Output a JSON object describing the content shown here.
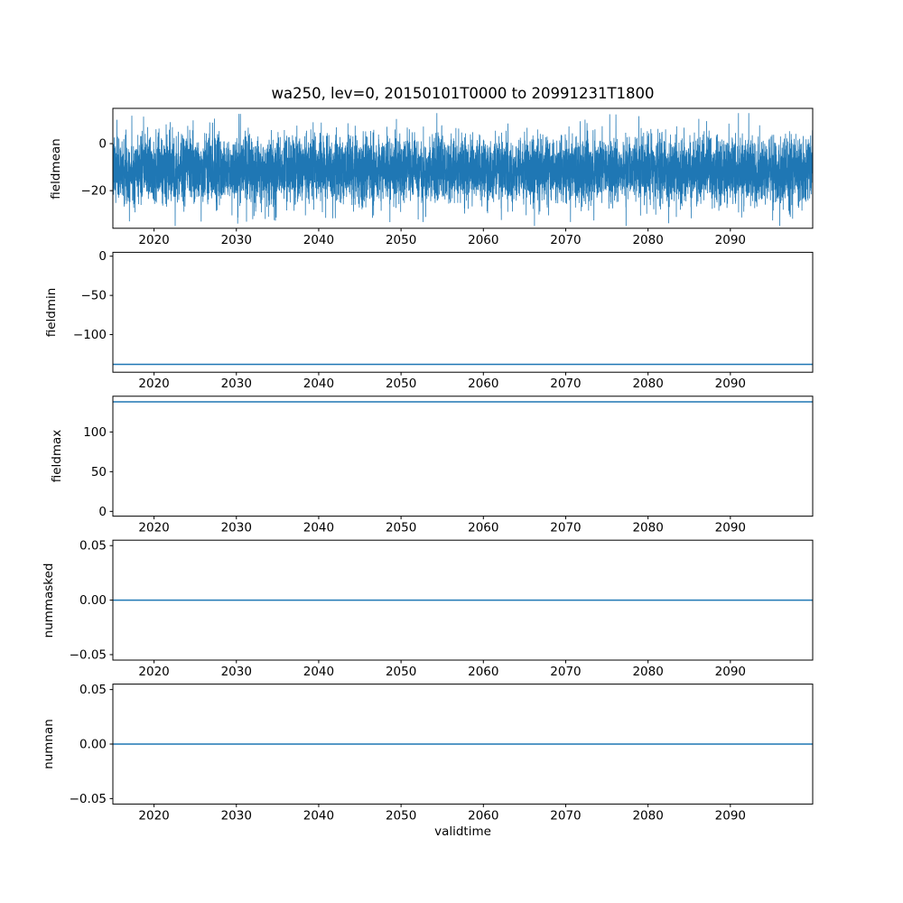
{
  "figure": {
    "title": "wa250, lev=0, 20150101T0000 to 20991231T1800",
    "xlabel": "validtime",
    "background_color": "#ffffff",
    "line_color": "#1f77b4",
    "axes_color": "#000000"
  },
  "chart_data": [
    {
      "type": "line",
      "title": "wa250, lev=0, 20150101T0000 to 20991231T1800",
      "ylabel": "fieldmean",
      "xlabel": "",
      "grid": false,
      "legend": "none",
      "x_range": [
        2015,
        2100
      ],
      "x_ticks": [
        2020,
        2030,
        2040,
        2050,
        2060,
        2070,
        2080,
        2090
      ],
      "y_tick_values": [
        0,
        -20
      ],
      "y_tick_labels": [
        "0",
        "−20"
      ],
      "ylim": [
        -36,
        15
      ],
      "series": [
        {
          "name": "fieldmean",
          "kind": "noise",
          "description": "dense high-frequency time series spanning 2015-2099, solid noise band roughly -25 to +3 with spikes down to -35 and up to +13",
          "mean": -11,
          "std": 7,
          "min": -35,
          "max": 13,
          "n_points": 8000,
          "seed": 7
        }
      ]
    },
    {
      "type": "line",
      "ylabel": "fieldmin",
      "xlabel": "",
      "grid": false,
      "legend": "none",
      "x_range": [
        2015,
        2100
      ],
      "x_ticks": [
        2020,
        2030,
        2040,
        2050,
        2060,
        2070,
        2080,
        2090
      ],
      "y_tick_values": [
        0,
        -50,
        -100
      ],
      "y_tick_labels": [
        "0",
        "−50",
        "−100"
      ],
      "ylim": [
        -148,
        5
      ],
      "series": [
        {
          "name": "fieldmin",
          "kind": "constant",
          "value": -138,
          "description": "flat line near bottom of panel, below the -100 tick"
        }
      ]
    },
    {
      "type": "line",
      "ylabel": "fieldmax",
      "xlabel": "",
      "grid": false,
      "legend": "none",
      "x_range": [
        2015,
        2100
      ],
      "x_ticks": [
        2020,
        2030,
        2040,
        2050,
        2060,
        2070,
        2080,
        2090
      ],
      "y_tick_values": [
        0,
        50,
        100
      ],
      "y_tick_labels": [
        "0",
        "50",
        "100"
      ],
      "ylim": [
        -6,
        145
      ],
      "series": [
        {
          "name": "fieldmax",
          "kind": "constant",
          "value": 138,
          "description": "flat line near top of panel, above the 100 tick"
        }
      ]
    },
    {
      "type": "line",
      "ylabel": "nummasked",
      "xlabel": "",
      "grid": false,
      "legend": "none",
      "x_range": [
        2015,
        2100
      ],
      "x_ticks": [
        2020,
        2030,
        2040,
        2050,
        2060,
        2070,
        2080,
        2090
      ],
      "y_tick_values": [
        0.05,
        0,
        -0.05
      ],
      "y_tick_labels": [
        "0.05",
        "0.00",
        "−0.05"
      ],
      "ylim": [
        -0.055,
        0.055
      ],
      "series": [
        {
          "name": "nummasked",
          "kind": "constant",
          "value": 0,
          "description": "flat line at exactly 0.00"
        }
      ]
    },
    {
      "type": "line",
      "ylabel": "numnan",
      "xlabel": "validtime",
      "grid": false,
      "legend": "none",
      "x_range": [
        2015,
        2100
      ],
      "x_ticks": [
        2020,
        2030,
        2040,
        2050,
        2060,
        2070,
        2080,
        2090
      ],
      "y_tick_values": [
        0.05,
        0,
        -0.05
      ],
      "y_tick_labels": [
        "0.05",
        "0.00",
        "−0.05"
      ],
      "ylim": [
        -0.055,
        0.055
      ],
      "series": [
        {
          "name": "numnan",
          "kind": "constant",
          "value": 0,
          "description": "flat line at exactly 0.00"
        }
      ]
    }
  ]
}
